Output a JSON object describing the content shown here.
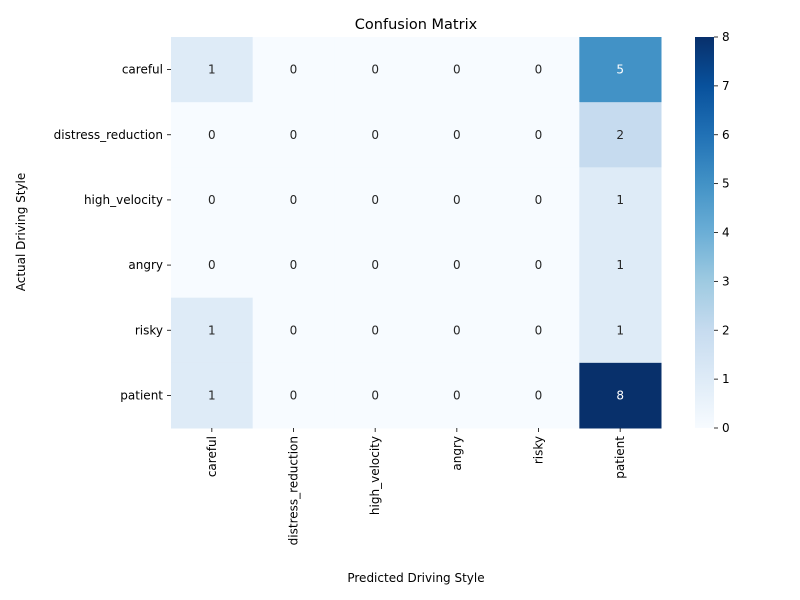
{
  "chart_data": {
    "type": "heatmap",
    "title": "Confusion Matrix",
    "xlabel": "Predicted Driving Style",
    "ylabel": "Actual Driving Style",
    "x_categories": [
      "careful",
      "distress_reduction",
      "high_velocity",
      "angry",
      "risky",
      "patient"
    ],
    "y_categories": [
      "careful",
      "distress_reduction",
      "high_velocity",
      "angry",
      "risky",
      "patient"
    ],
    "values": [
      [
        1,
        0,
        0,
        0,
        0,
        5
      ],
      [
        0,
        0,
        0,
        0,
        0,
        2
      ],
      [
        0,
        0,
        0,
        0,
        0,
        1
      ],
      [
        0,
        0,
        0,
        0,
        0,
        1
      ],
      [
        1,
        0,
        0,
        0,
        0,
        1
      ],
      [
        1,
        0,
        0,
        0,
        0,
        8
      ]
    ],
    "colormap": "Blues",
    "vmin": 0,
    "vmax": 8,
    "colorbar_ticks": [
      0,
      1,
      2,
      3,
      4,
      5,
      6,
      7,
      8
    ]
  }
}
